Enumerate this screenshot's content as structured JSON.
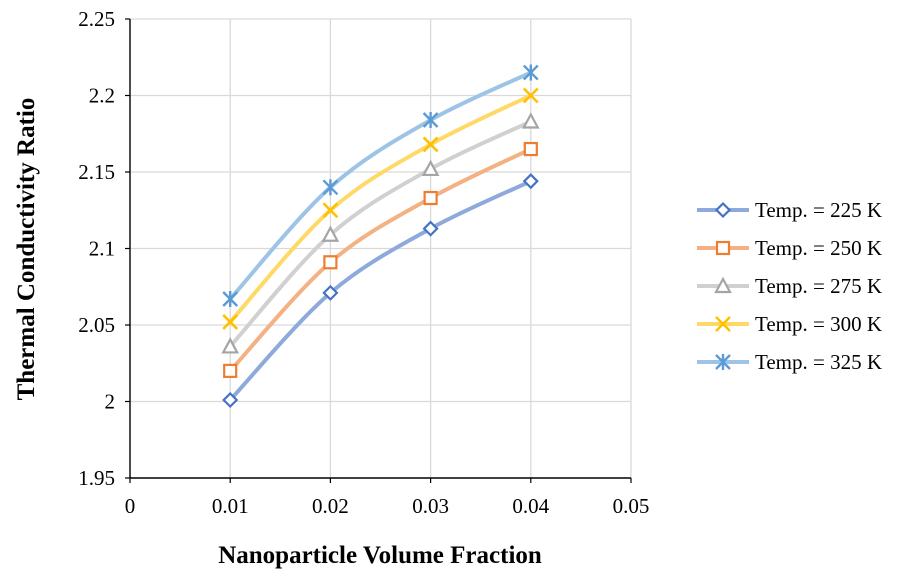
{
  "chart_data": {
    "type": "line",
    "xlabel": "Nanoparticle Volume Fraction",
    "ylabel": "Thermal Conductivity Ratio",
    "xlim": [
      0,
      0.05
    ],
    "ylim": [
      1.95,
      2.25
    ],
    "x_ticks": [
      "0",
      "0.01",
      "0.02",
      "0.03",
      "0.04",
      "0.05"
    ],
    "y_ticks": [
      "1.95",
      "2",
      "2.05",
      "2.1",
      "2.15",
      "2.2",
      "2.25"
    ],
    "x_tick_values": [
      0,
      0.01,
      0.02,
      0.03,
      0.04,
      0.05
    ],
    "y_tick_values": [
      1.95,
      2.0,
      2.05,
      2.1,
      2.15,
      2.2,
      2.25
    ],
    "grid": true,
    "smooth_lines": true,
    "legend_position": "right",
    "x": [
      0.01,
      0.02,
      0.03,
      0.04
    ],
    "series": [
      {
        "name": "Temp. = 225 K",
        "values": [
          2.001,
          2.071,
          2.113,
          2.144
        ],
        "color": "#4472C4",
        "line_color": "#8EA9DB",
        "marker": "diamond"
      },
      {
        "name": "Temp. = 250 K",
        "values": [
          2.02,
          2.091,
          2.133,
          2.165
        ],
        "color": "#ED7D31",
        "line_color": "#F4B183",
        "marker": "square"
      },
      {
        "name": "Temp. = 275 K",
        "values": [
          2.036,
          2.109,
          2.152,
          2.183
        ],
        "color": "#A5A5A5",
        "line_color": "#D0D0D0",
        "marker": "triangle"
      },
      {
        "name": "Temp. = 300 K",
        "values": [
          2.052,
          2.125,
          2.168,
          2.2
        ],
        "color": "#FFC000",
        "line_color": "#FFD966",
        "marker": "x"
      },
      {
        "name": "Temp. = 325 K",
        "values": [
          2.067,
          2.14,
          2.184,
          2.215
        ],
        "color": "#5B9BD5",
        "line_color": "#9DC3E6",
        "marker": "star"
      }
    ]
  }
}
